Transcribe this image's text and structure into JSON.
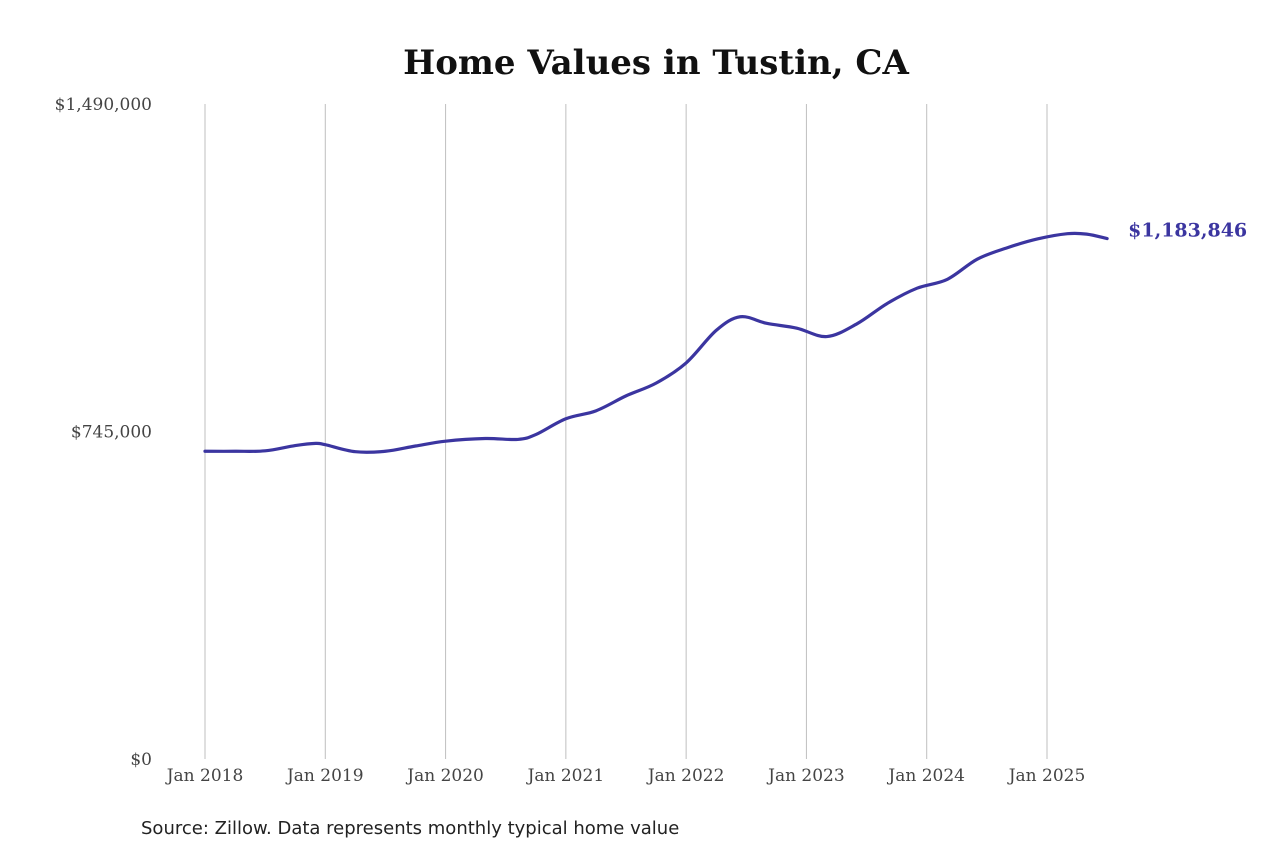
{
  "chart_data": {
    "type": "line",
    "title": "Home Values in Tustin, CA",
    "xlabel": "",
    "ylabel": "",
    "ylim": [
      0,
      1490000
    ],
    "yticks": [
      {
        "value": 0,
        "label": "$0"
      },
      {
        "value": 745000,
        "label": "$745,000"
      },
      {
        "value": 1490000,
        "label": "$1,490,000"
      }
    ],
    "xticks": [
      {
        "value": 2018.0,
        "label": "Jan 2018"
      },
      {
        "value": 2019.0,
        "label": "Jan 2019"
      },
      {
        "value": 2020.0,
        "label": "Jan 2020"
      },
      {
        "value": 2021.0,
        "label": "Jan 2021"
      },
      {
        "value": 2022.0,
        "label": "Jan 2022"
      },
      {
        "value": 2023.0,
        "label": "Jan 2023"
      },
      {
        "value": 2024.0,
        "label": "Jan 2024"
      },
      {
        "value": 2025.0,
        "label": "Jan 2025"
      }
    ],
    "xlim": [
      2018.0,
      2025.5
    ],
    "grid": "vertical",
    "series": [
      {
        "color": "#3b35a0",
        "end_label": "$1,183,846",
        "points": [
          {
            "x": 2018.0,
            "y": 700000
          },
          {
            "x": 2018.25,
            "y": 700000
          },
          {
            "x": 2018.5,
            "y": 701000
          },
          {
            "x": 2018.75,
            "y": 713000
          },
          {
            "x": 2018.92,
            "y": 718000
          },
          {
            "x": 2019.0,
            "y": 715000
          },
          {
            "x": 2019.25,
            "y": 699000
          },
          {
            "x": 2019.5,
            "y": 700000
          },
          {
            "x": 2019.75,
            "y": 712000
          },
          {
            "x": 2020.0,
            "y": 723000
          },
          {
            "x": 2020.33,
            "y": 729000
          },
          {
            "x": 2020.6,
            "y": 727000
          },
          {
            "x": 2020.75,
            "y": 738000
          },
          {
            "x": 2021.0,
            "y": 774000
          },
          {
            "x": 2021.25,
            "y": 792000
          },
          {
            "x": 2021.5,
            "y": 826000
          },
          {
            "x": 2021.75,
            "y": 855000
          },
          {
            "x": 2022.0,
            "y": 901000
          },
          {
            "x": 2022.25,
            "y": 975000
          },
          {
            "x": 2022.45,
            "y": 1006000
          },
          {
            "x": 2022.67,
            "y": 991000
          },
          {
            "x": 2022.92,
            "y": 980000
          },
          {
            "x": 2023.17,
            "y": 961000
          },
          {
            "x": 2023.42,
            "y": 990000
          },
          {
            "x": 2023.67,
            "y": 1036000
          },
          {
            "x": 2023.92,
            "y": 1071000
          },
          {
            "x": 2024.17,
            "y": 1091000
          },
          {
            "x": 2024.42,
            "y": 1137000
          },
          {
            "x": 2024.67,
            "y": 1163000
          },
          {
            "x": 2024.92,
            "y": 1183000
          },
          {
            "x": 2025.17,
            "y": 1195000
          },
          {
            "x": 2025.33,
            "y": 1194000
          },
          {
            "x": 2025.5,
            "y": 1183846
          }
        ]
      }
    ]
  },
  "source": "Source: Zillow. Data represents monthly typical home value"
}
